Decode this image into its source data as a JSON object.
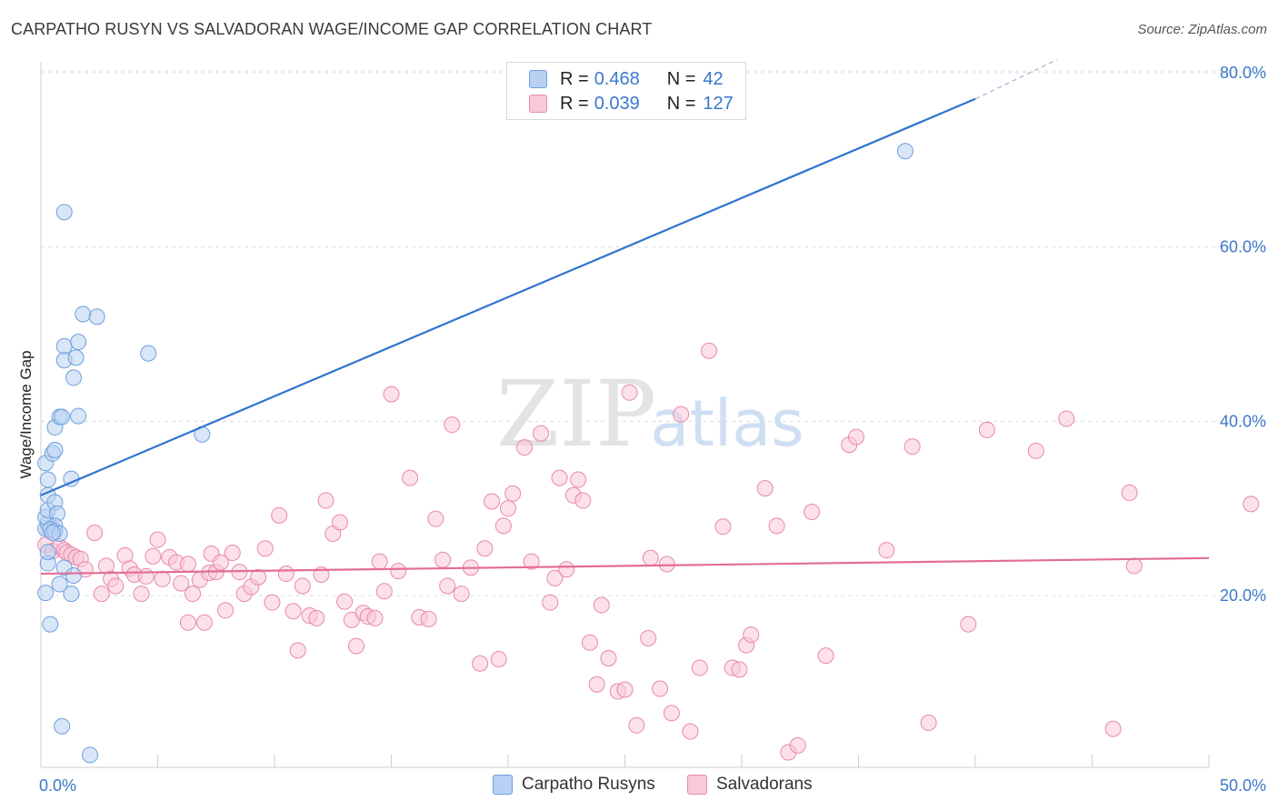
{
  "title": "CARPATHO RUSYN VS SALVADORAN WAGE/INCOME GAP CORRELATION CHART",
  "source": "Source: ZipAtlas.com",
  "watermark": {
    "zip": "ZIP",
    "atlas": "atlas"
  },
  "legend": {
    "rows": [
      {
        "r_label": "R =",
        "r_value": "0.468",
        "n_label": "N =",
        "n_value": "42",
        "color": "#a9c6f0",
        "border": "#6f9fdc"
      },
      {
        "r_label": "R =",
        "r_value": "0.039",
        "n_label": "N =",
        "n_value": "127",
        "color": "#f7bfd0",
        "border": "#e889a8"
      }
    ]
  },
  "bottom_legend": [
    {
      "label": "Carpatho Rusyns",
      "color": "#b8d1f3",
      "border": "#6f9fdc"
    },
    {
      "label": "Salvadorans",
      "color": "#f9c9d8",
      "border": "#e889a8"
    }
  ],
  "chart_data": {
    "type": "scatter",
    "title": "CARPATHO RUSYN VS SALVADORAN WAGE/INCOME GAP CORRELATION CHART",
    "xlabel": "",
    "ylabel": "Wage/Income Gap",
    "xlim": [
      0,
      50
    ],
    "ylim": [
      0,
      82
    ],
    "x_tick_labels": [
      "0.0%",
      "50.0%"
    ],
    "y_tick_labels": [
      "20.0%",
      "40.0%",
      "60.0%",
      "80.0%"
    ],
    "y_ticks": [
      20,
      40,
      60,
      80
    ],
    "x_minor_ticks": [
      5,
      10,
      15,
      20,
      25,
      30,
      35,
      40,
      45,
      50
    ],
    "grid": true,
    "series": [
      {
        "name": "Carpatho Rusyns",
        "color": "#6f9fdc",
        "fill": "#b8d1f3",
        "trend": {
          "x": [
            0,
            40
          ],
          "y": [
            31.5,
            77.0
          ],
          "dash_to": [
            43.5,
            81.5
          ]
        },
        "points": [
          [
            0.2,
            20.3
          ],
          [
            0.4,
            16.7
          ],
          [
            0.3,
            23.7
          ],
          [
            0.3,
            25.0
          ],
          [
            0.2,
            27.7
          ],
          [
            0.3,
            28.3
          ],
          [
            0.2,
            29.0
          ],
          [
            0.3,
            29.8
          ],
          [
            0.3,
            31.5
          ],
          [
            0.6,
            30.7
          ],
          [
            0.7,
            29.4
          ],
          [
            0.6,
            28.0
          ],
          [
            0.4,
            27.6
          ],
          [
            0.6,
            27.4
          ],
          [
            0.8,
            27.1
          ],
          [
            0.3,
            33.3
          ],
          [
            0.2,
            35.2
          ],
          [
            0.5,
            36.3
          ],
          [
            0.6,
            36.7
          ],
          [
            0.6,
            39.3
          ],
          [
            0.8,
            40.5
          ],
          [
            0.9,
            40.5
          ],
          [
            1.6,
            40.6
          ],
          [
            1.3,
            33.4
          ],
          [
            1.0,
            48.6
          ],
          [
            1.0,
            47.0
          ],
          [
            1.5,
            47.3
          ],
          [
            1.6,
            49.1
          ],
          [
            1.4,
            45.0
          ],
          [
            1.8,
            52.3
          ],
          [
            2.4,
            52.0
          ],
          [
            4.6,
            47.8
          ],
          [
            1.0,
            64.0
          ],
          [
            6.9,
            38.5
          ],
          [
            1.0,
            23.2
          ],
          [
            0.8,
            21.3
          ],
          [
            1.3,
            20.2
          ],
          [
            1.4,
            22.3
          ],
          [
            0.9,
            5.0
          ],
          [
            2.1,
            1.7
          ],
          [
            37.0,
            71.0
          ],
          [
            0.5,
            27.2
          ]
        ]
      },
      {
        "name": "Salvadorans",
        "color": "#e889a8",
        "fill": "#f9c9d8",
        "trend": {
          "x": [
            0,
            50
          ],
          "y": [
            22.5,
            24.3
          ]
        },
        "points": [
          [
            0.2,
            25.8
          ],
          [
            0.5,
            25.1
          ],
          [
            0.8,
            25.6
          ],
          [
            1.0,
            25.2
          ],
          [
            1.1,
            24.9
          ],
          [
            1.3,
            24.7
          ],
          [
            1.5,
            24.4
          ],
          [
            1.7,
            24.2
          ],
          [
            1.9,
            23.0
          ],
          [
            2.3,
            27.2
          ],
          [
            2.6,
            20.2
          ],
          [
            2.8,
            23.4
          ],
          [
            3.0,
            21.9
          ],
          [
            3.2,
            21.1
          ],
          [
            3.6,
            24.6
          ],
          [
            3.8,
            23.1
          ],
          [
            4.0,
            22.4
          ],
          [
            4.3,
            20.2
          ],
          [
            4.5,
            22.2
          ],
          [
            4.8,
            24.5
          ],
          [
            5.0,
            26.4
          ],
          [
            5.2,
            21.9
          ],
          [
            5.5,
            24.4
          ],
          [
            5.8,
            23.8
          ],
          [
            6.0,
            21.4
          ],
          [
            6.3,
            23.6
          ],
          [
            6.5,
            20.2
          ],
          [
            6.8,
            21.8
          ],
          [
            6.3,
            16.9
          ],
          [
            7.0,
            16.9
          ],
          [
            7.2,
            22.6
          ],
          [
            7.3,
            24.8
          ],
          [
            7.5,
            22.7
          ],
          [
            7.7,
            23.8
          ],
          [
            7.9,
            18.3
          ],
          [
            8.2,
            24.9
          ],
          [
            8.5,
            22.7
          ],
          [
            8.7,
            20.2
          ],
          [
            9.0,
            21.0
          ],
          [
            9.3,
            22.1
          ],
          [
            9.6,
            25.4
          ],
          [
            9.9,
            19.2
          ],
          [
            10.2,
            29.2
          ],
          [
            10.5,
            22.5
          ],
          [
            10.8,
            18.2
          ],
          [
            11.0,
            13.7
          ],
          [
            11.2,
            21.1
          ],
          [
            11.5,
            17.7
          ],
          [
            11.8,
            17.4
          ],
          [
            12.0,
            22.4
          ],
          [
            12.2,
            30.9
          ],
          [
            12.5,
            27.1
          ],
          [
            12.8,
            28.4
          ],
          [
            13.0,
            19.3
          ],
          [
            13.3,
            17.2
          ],
          [
            13.5,
            14.2
          ],
          [
            13.8,
            18.0
          ],
          [
            14.0,
            17.6
          ],
          [
            14.3,
            17.4
          ],
          [
            14.7,
            20.5
          ],
          [
            14.5,
            23.9
          ],
          [
            15.0,
            43.1
          ],
          [
            15.3,
            22.8
          ],
          [
            15.8,
            33.5
          ],
          [
            16.2,
            17.5
          ],
          [
            16.6,
            17.3
          ],
          [
            16.9,
            28.8
          ],
          [
            17.2,
            24.1
          ],
          [
            17.4,
            21.1
          ],
          [
            17.6,
            39.6
          ],
          [
            18.0,
            20.2
          ],
          [
            18.4,
            23.2
          ],
          [
            18.8,
            12.2
          ],
          [
            19.0,
            25.4
          ],
          [
            19.3,
            30.8
          ],
          [
            19.6,
            12.7
          ],
          [
            19.8,
            28.0
          ],
          [
            20.0,
            30.0
          ],
          [
            20.2,
            31.7
          ],
          [
            20.7,
            37.0
          ],
          [
            21.0,
            23.9
          ],
          [
            21.4,
            38.6
          ],
          [
            21.8,
            19.2
          ],
          [
            22.0,
            22.0
          ],
          [
            22.2,
            33.5
          ],
          [
            22.5,
            23.0
          ],
          [
            22.8,
            31.5
          ],
          [
            23.0,
            33.3
          ],
          [
            23.2,
            30.9
          ],
          [
            23.5,
            14.6
          ],
          [
            23.8,
            9.8
          ],
          [
            24.0,
            18.9
          ],
          [
            24.3,
            12.8
          ],
          [
            24.7,
            9.0
          ],
          [
            25.0,
            9.2
          ],
          [
            25.2,
            43.3
          ],
          [
            25.5,
            5.1
          ],
          [
            26.0,
            15.1
          ],
          [
            26.1,
            24.3
          ],
          [
            26.5,
            9.3
          ],
          [
            26.8,
            23.6
          ],
          [
            27.0,
            6.5
          ],
          [
            27.4,
            40.8
          ],
          [
            27.8,
            4.4
          ],
          [
            28.2,
            11.7
          ],
          [
            28.6,
            48.1
          ],
          [
            29.2,
            27.9
          ],
          [
            29.6,
            11.7
          ],
          [
            29.9,
            11.5
          ],
          [
            30.2,
            14.3
          ],
          [
            30.4,
            15.5
          ],
          [
            31.0,
            32.3
          ],
          [
            31.5,
            28.0
          ],
          [
            32.0,
            2.0
          ],
          [
            32.4,
            2.8
          ],
          [
            33.0,
            29.6
          ],
          [
            33.6,
            13.1
          ],
          [
            34.6,
            37.3
          ],
          [
            34.9,
            38.2
          ],
          [
            36.2,
            25.2
          ],
          [
            37.3,
            37.1
          ],
          [
            38.0,
            5.4
          ],
          [
            39.7,
            16.7
          ],
          [
            40.5,
            39.0
          ],
          [
            42.6,
            36.6
          ],
          [
            43.9,
            40.3
          ],
          [
            45.9,
            4.7
          ],
          [
            46.6,
            31.8
          ],
          [
            46.8,
            23.4
          ],
          [
            51.8,
            30.5
          ]
        ]
      }
    ]
  }
}
